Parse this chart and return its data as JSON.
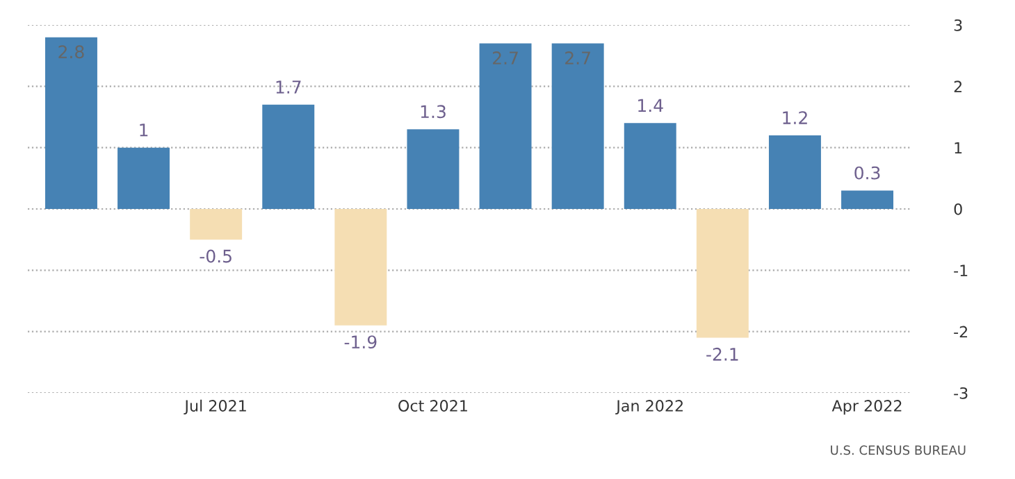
{
  "chart_data": {
    "type": "bar",
    "categories": [
      null,
      null,
      "Jul 2021",
      null,
      null,
      "Oct 2021",
      null,
      null,
      "Jan 2022",
      null,
      null,
      "Apr 2022"
    ],
    "values": [
      2.8,
      1,
      -0.5,
      1.7,
      -1.9,
      1.3,
      2.7,
      2.7,
      1.4,
      -2.1,
      1.2,
      0.3
    ],
    "colors": [
      "#4682b4",
      "#4682b4",
      "#f5deb3",
      "#4682b4",
      "#f5deb3",
      "#4682b4",
      "#4682b4",
      "#4682b4",
      "#4682b4",
      "#f5deb3",
      "#4682b4",
      "#4682b4"
    ],
    "ylim": [
      -3,
      3
    ],
    "yticks": [
      -3,
      -2,
      -1,
      0,
      1,
      2,
      3
    ],
    "grid": "y",
    "data_labels": true,
    "annotations": [
      "U.S. CENSUS BUREAU"
    ]
  }
}
